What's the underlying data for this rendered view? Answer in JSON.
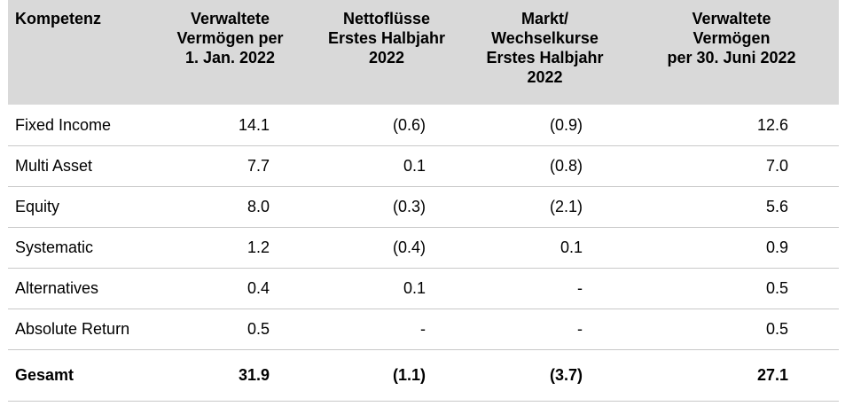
{
  "headers": [
    "Kompetenz",
    "Verwaltete\nVermögen per\n1. Jan. 2022",
    "Nettoflüsse\nErstes Halbjahr\n2022",
    "Markt/\nWechselkurse\nErstes Halbjahr\n2022",
    "Verwaltete\nVermögen\nper 30. Juni 2022"
  ],
  "rows": [
    {
      "label": "Fixed Income",
      "values": [
        "14.1",
        "(0.6)",
        "(0.9)",
        "12.6"
      ]
    },
    {
      "label": "Multi Asset",
      "values": [
        "7.7",
        "0.1",
        "(0.8)",
        "7.0"
      ]
    },
    {
      "label": "Equity",
      "values": [
        "8.0",
        "(0.3)",
        "(2.1)",
        "5.6"
      ]
    },
    {
      "label": "Systematic",
      "values": [
        "1.2",
        "(0.4)",
        "0.1",
        "0.9"
      ]
    },
    {
      "label": "Alternatives",
      "values": [
        "0.4",
        "0.1",
        "-",
        "0.5"
      ]
    },
    {
      "label": "Absolute Return",
      "values": [
        "0.5",
        "-",
        "-",
        "0.5"
      ]
    }
  ],
  "total": {
    "label": "Gesamt",
    "values": [
      "31.9",
      "(1.1)",
      "(3.7)",
      "27.1"
    ]
  },
  "colors": {
    "header_background": "#d9d9d9",
    "row_divider": "#c8c8c8",
    "text": "#000000"
  }
}
